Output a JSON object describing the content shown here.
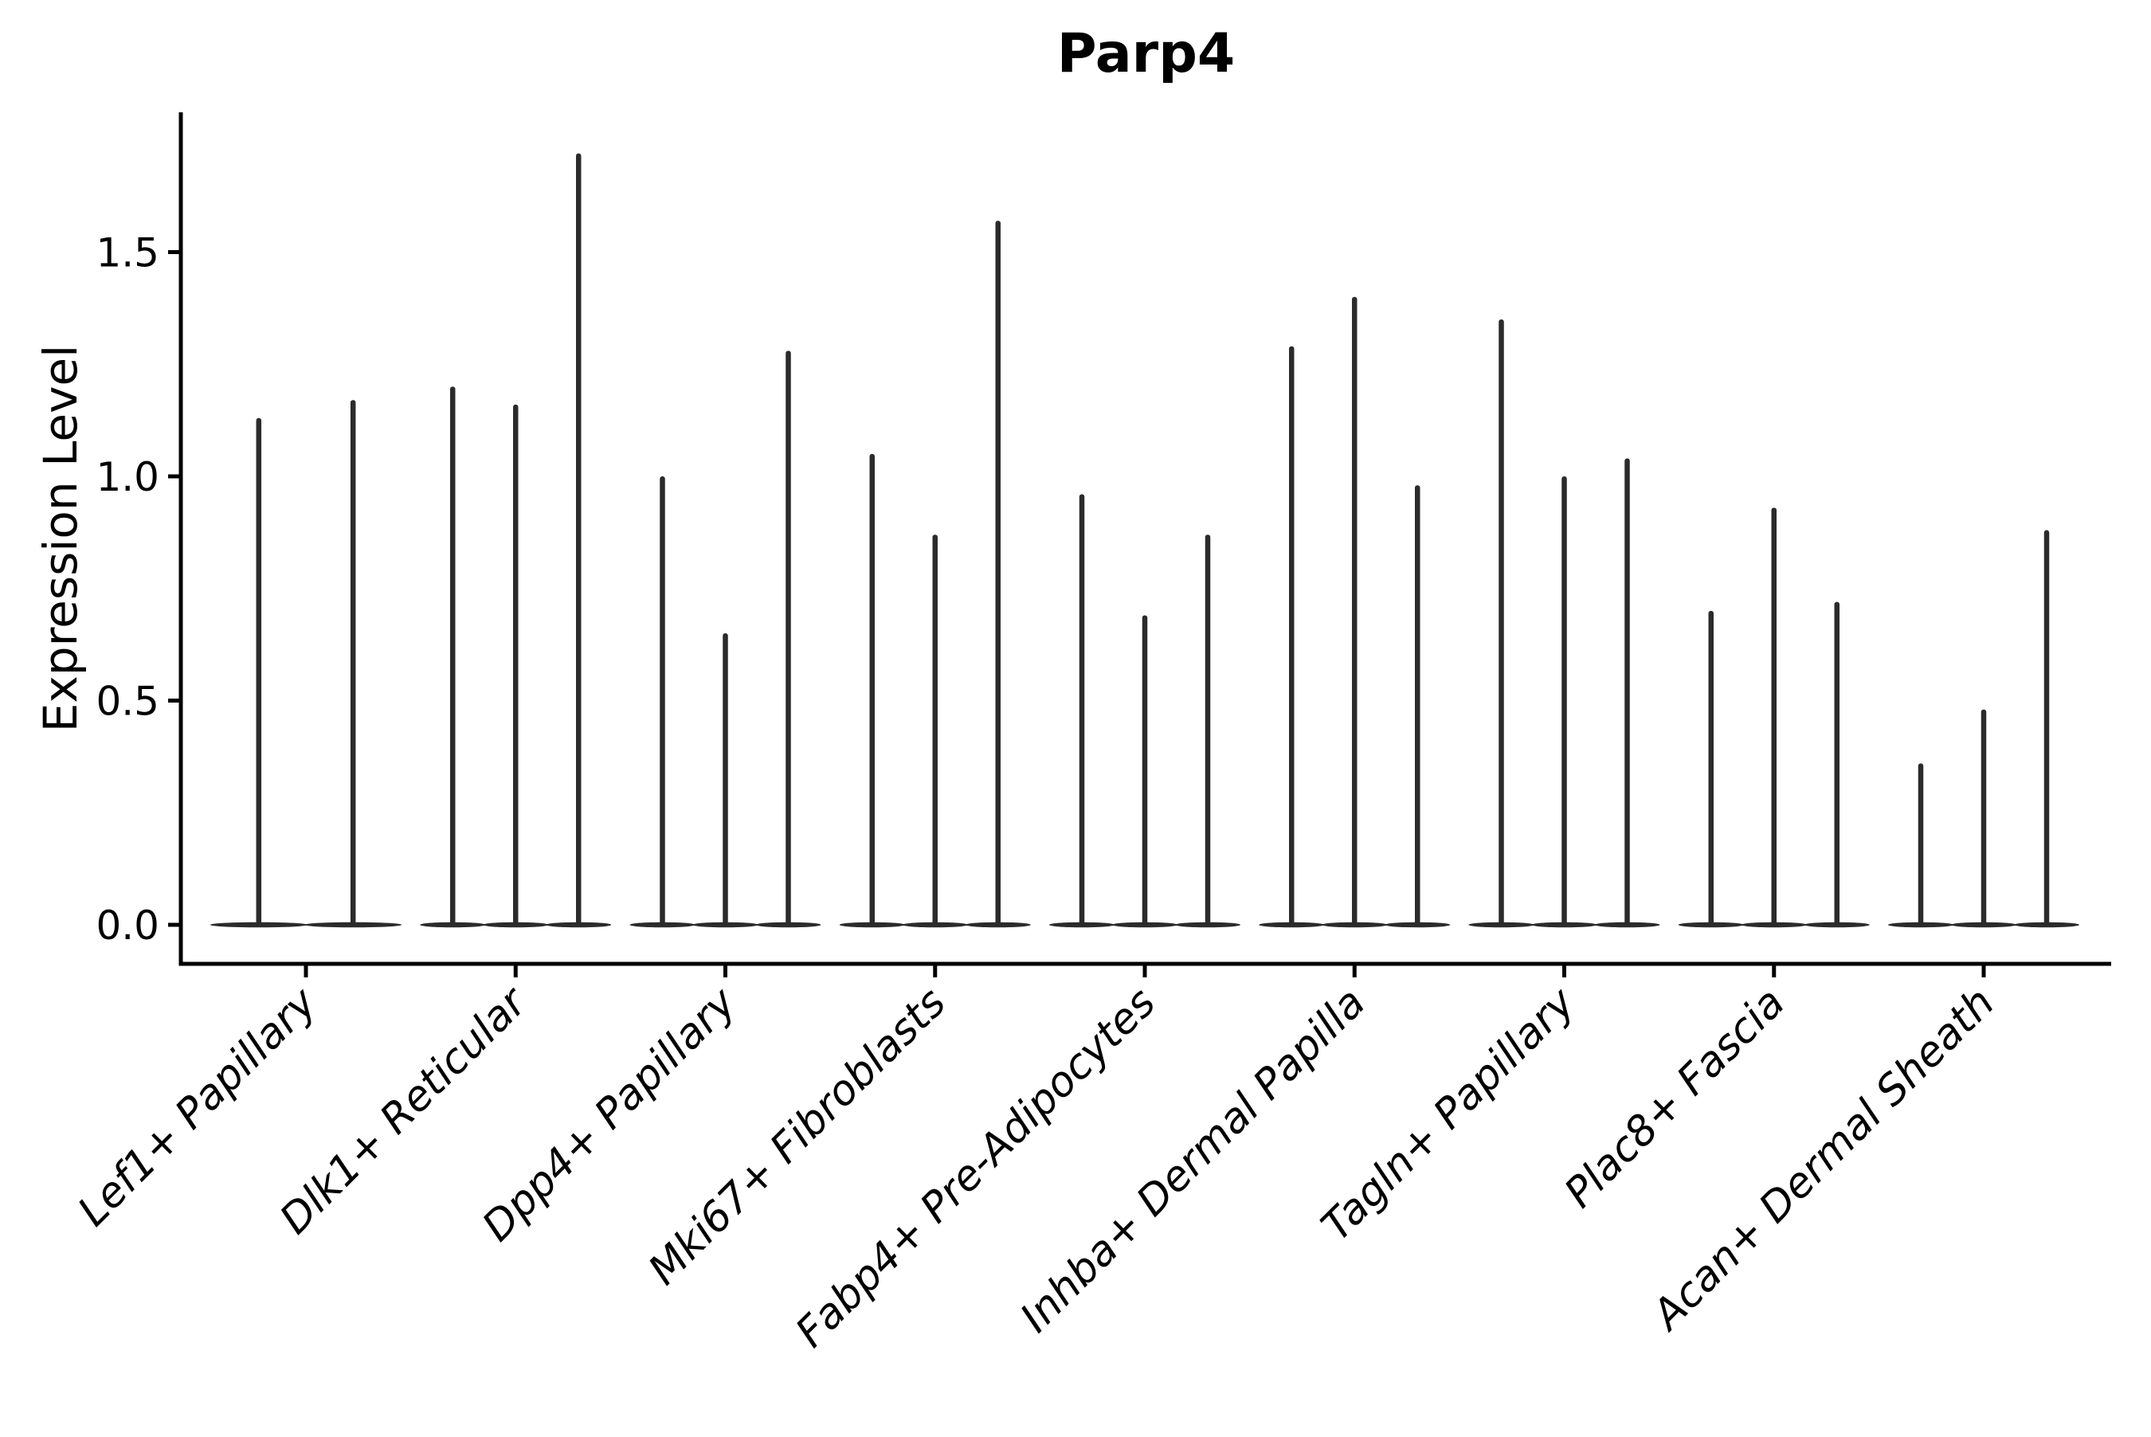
{
  "figure": {
    "background": "#ffffff"
  },
  "chart_data": {
    "type": "violin",
    "title": "Parp4",
    "ylabel": "Expression Level",
    "xlabel": "",
    "ylim": [
      0,
      1.81
    ],
    "grid": false,
    "legend": "none",
    "colors": {
      "violin": "#2b2b2b",
      "axis": "#000000",
      "text": "#000000"
    },
    "yticks": [
      {
        "label": "0.0",
        "value": 0.0
      },
      {
        "label": "0.5",
        "value": 0.5
      },
      {
        "label": "1.0",
        "value": 1.0
      },
      {
        "label": "1.5",
        "value": 1.5
      }
    ],
    "categories": [
      "Lef1+ Papillary",
      "Dlk1+ Reticular",
      "Dpp4+ Papillary",
      "Mki67+ Fibroblasts",
      "Fabp4+ Pre-Adipocytes",
      "Inhba+ Dermal Papilla",
      "Tagln+ Papillary",
      "Plac8+ Fascia",
      "Acan+ Dermal Sheath"
    ],
    "violins_per_category": [
      2,
      3,
      3,
      3,
      3,
      3,
      3,
      3,
      3
    ],
    "max_expression": [
      [
        1.13,
        1.17
      ],
      [
        1.2,
        1.16,
        1.72
      ],
      [
        1.0,
        0.65,
        1.28
      ],
      [
        1.05,
        0.87,
        1.57
      ],
      [
        0.96,
        0.69,
        0.87
      ],
      [
        1.29,
        1.4,
        0.98
      ],
      [
        1.35,
        1.0,
        1.04
      ],
      [
        0.7,
        0.93,
        0.72
      ],
      [
        0.36,
        0.48,
        0.88
      ]
    ],
    "violin_shape_note": "density bulk at 0 (flat lens at baseline) with a thin vertical spike up to the max expression value"
  }
}
